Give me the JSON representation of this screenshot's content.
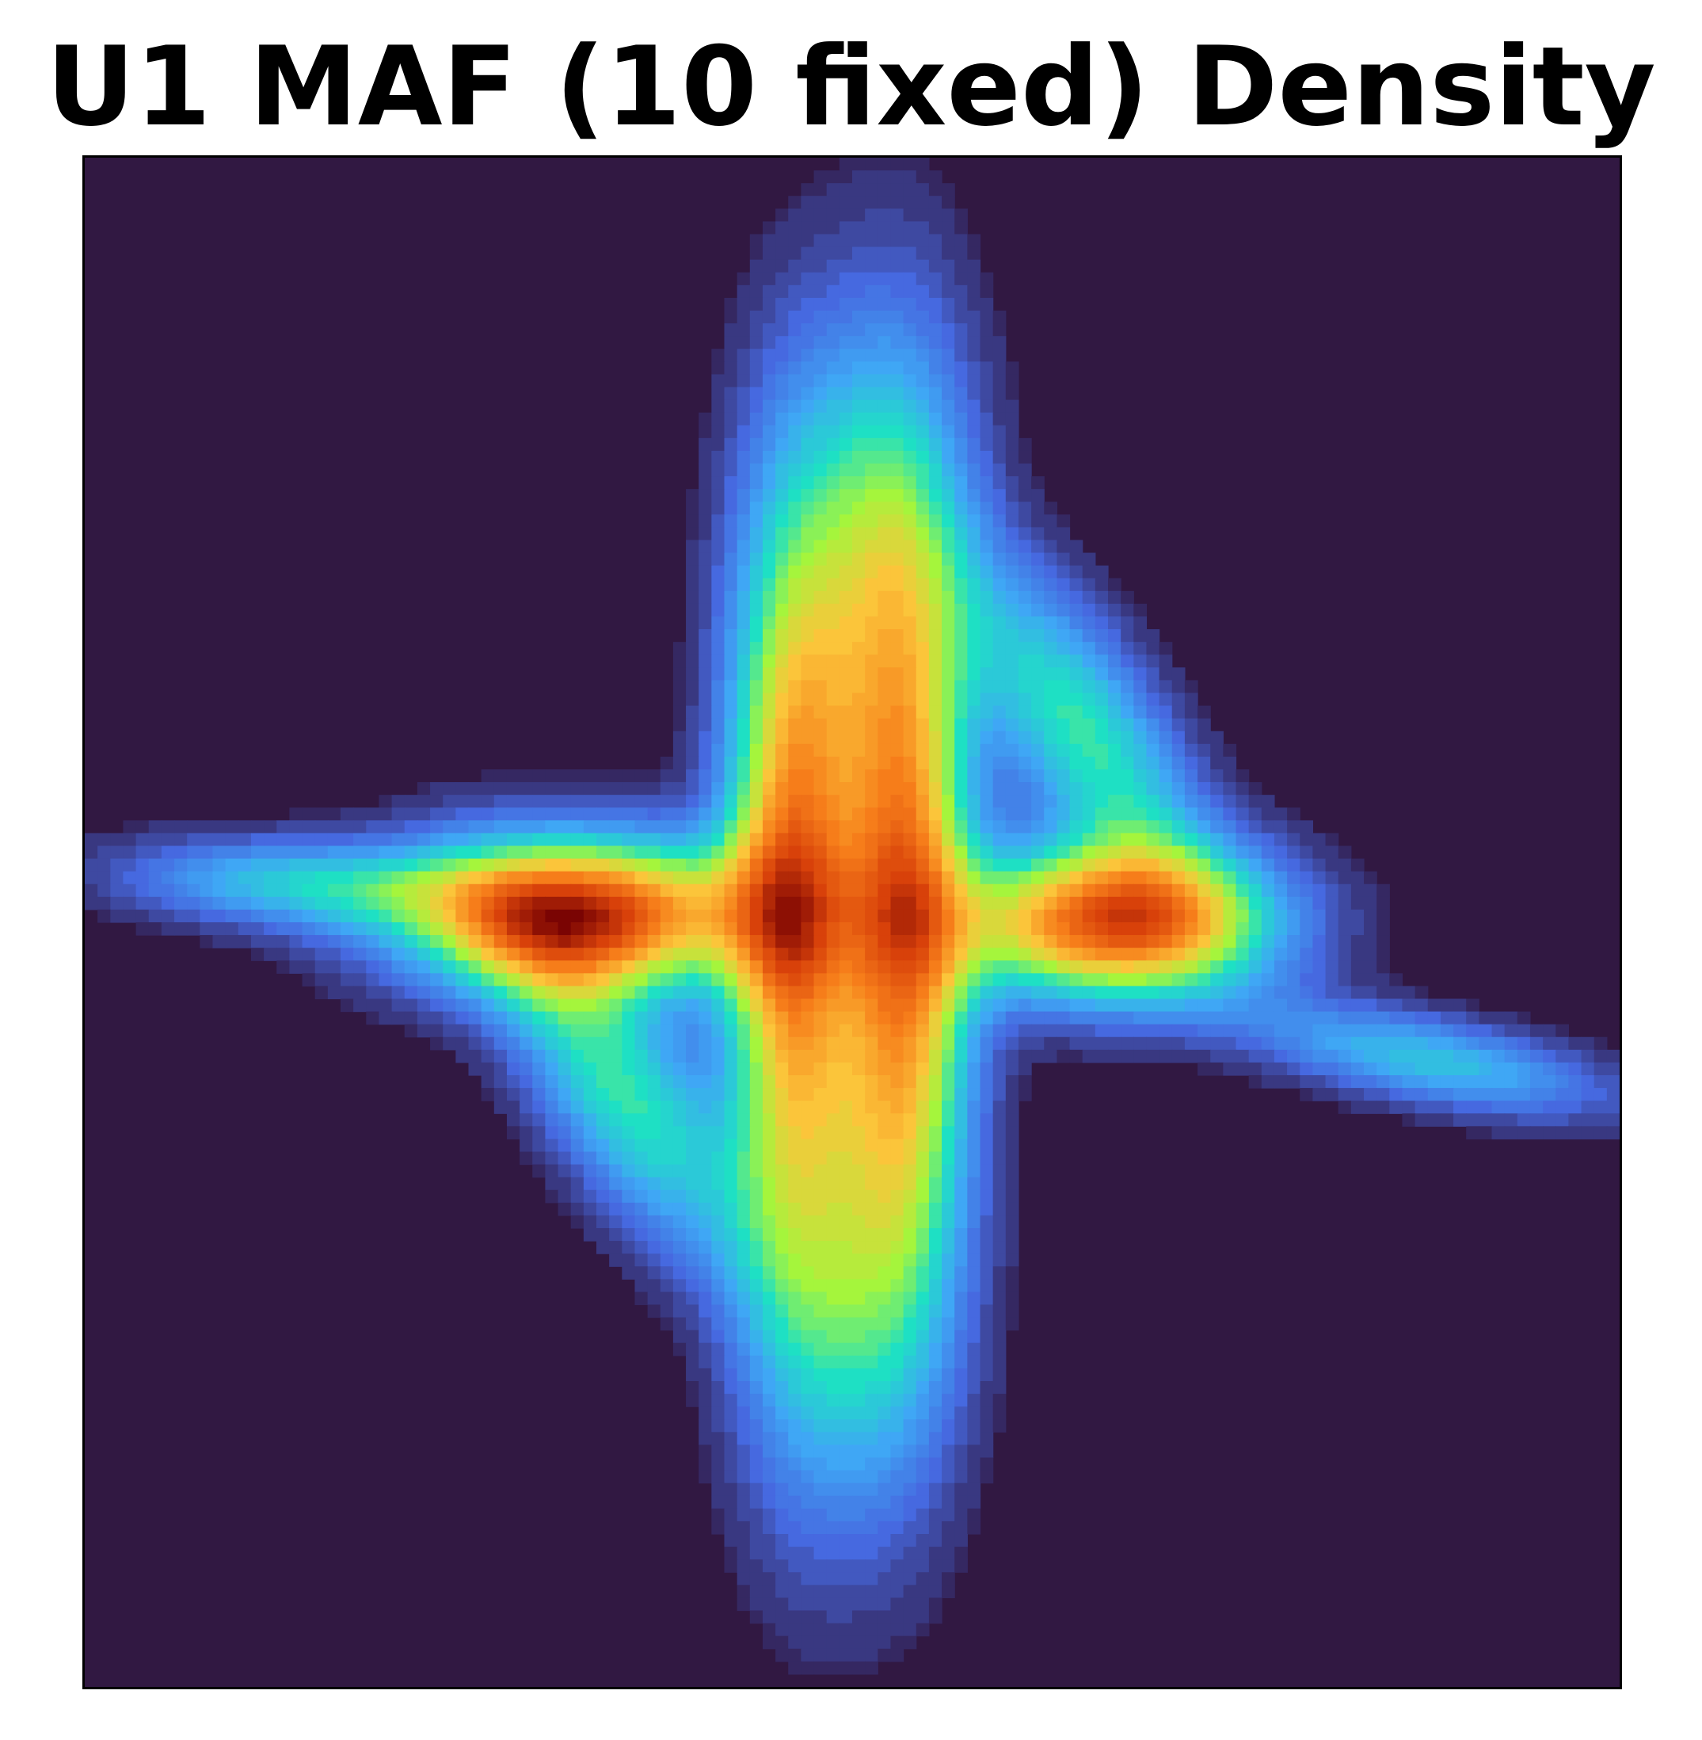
{
  "chart": {
    "title": "U1 MAF (10 fixed) Density"
  },
  "colors": {
    "background": "#311842",
    "colormap": [
      "#311842",
      "#4669e0",
      "#3fa7f5",
      "#1ee0c4",
      "#a5f53c",
      "#fbc53a",
      "#f67d1a",
      "#d8410a",
      "#7a0403"
    ]
  },
  "chart_data": {
    "type": "heatmap",
    "title": "U1 MAF (10 fixed) Density",
    "xlabel": "",
    "ylabel": "",
    "colormap": "turbo",
    "axes_ticks": "hidden",
    "grid": false,
    "legend": "none",
    "x_range": [
      -1,
      1
    ],
    "y_range": [
      -1,
      1
    ],
    "components": [
      {
        "name": "left-peak",
        "x": -0.35,
        "y": 0.01,
        "sx": 0.16,
        "sy": 0.07,
        "rho": 0.0,
        "weight": 1.0
      },
      {
        "name": "right-peak",
        "x": 0.34,
        "y": 0.0,
        "sx": 0.14,
        "sy": 0.07,
        "rho": 0.0,
        "weight": 0.95
      },
      {
        "name": "center-left-band",
        "x": -0.08,
        "y": 0.03,
        "sx": 0.06,
        "sy": 0.33,
        "rho": 0.0,
        "weight": 0.8
      },
      {
        "name": "center-right-band",
        "x": 0.07,
        "y": 0.02,
        "sx": 0.06,
        "sy": 0.33,
        "rho": 0.0,
        "weight": 0.8
      },
      {
        "name": "upper-spike",
        "x": 0.02,
        "y": 0.5,
        "sx": 0.09,
        "sy": 0.22,
        "rho": 0.1,
        "weight": 0.35
      },
      {
        "name": "lower-spike",
        "x": 0.0,
        "y": -0.5,
        "sx": 0.09,
        "sy": 0.22,
        "rho": 0.1,
        "weight": 0.33
      },
      {
        "name": "left-arm",
        "x": -0.72,
        "y": 0.05,
        "sx": 0.16,
        "sy": 0.04,
        "rho": -0.2,
        "weight": 0.35
      },
      {
        "name": "right-arm",
        "x": 0.75,
        "y": -0.18,
        "sx": 0.16,
        "sy": 0.05,
        "rho": -0.6,
        "weight": 0.35
      },
      {
        "name": "diag-upper-right",
        "x": 0.3,
        "y": 0.25,
        "sx": 0.11,
        "sy": 0.15,
        "rho": -0.7,
        "weight": 0.45
      },
      {
        "name": "diag-lower-left",
        "x": -0.3,
        "y": -0.22,
        "sx": 0.11,
        "sy": 0.15,
        "rho": -0.7,
        "weight": 0.45
      }
    ]
  }
}
